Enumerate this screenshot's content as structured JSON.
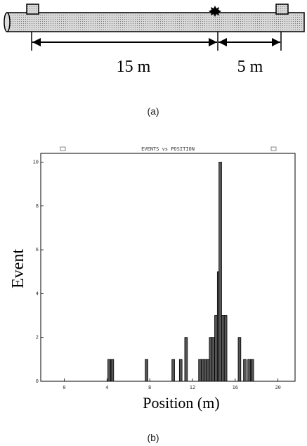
{
  "diagram": {
    "distance_labels": [
      "15 m",
      "5 m"
    ],
    "caption": "(a)"
  },
  "chart_data": {
    "type": "bar",
    "title": "EVENTS vs POSITION",
    "x_label": "Position (m)",
    "y_label": "Event",
    "x": [
      4.2,
      4.5,
      7.7,
      10.2,
      10.9,
      11.4,
      12.7,
      12.95,
      13.2,
      13.45,
      13.7,
      13.95,
      14.2,
      14.45,
      14.6,
      14.85,
      15.1,
      16.4,
      16.9,
      17.3,
      17.6
    ],
    "values": [
      1,
      1,
      1,
      1,
      1,
      2,
      1,
      1,
      1,
      1,
      2,
      2,
      3,
      5,
      10,
      3,
      3,
      2,
      1,
      1,
      1
    ],
    "color": "#555555",
    "xlim": [
      -2.2,
      21.6
    ],
    "xticks": [
      0,
      4,
      8,
      12,
      16,
      20
    ],
    "ylim": [
      0,
      10.4
    ],
    "yticks": [
      0,
      2,
      4,
      6,
      8,
      10
    ],
    "caption": "(b)"
  }
}
